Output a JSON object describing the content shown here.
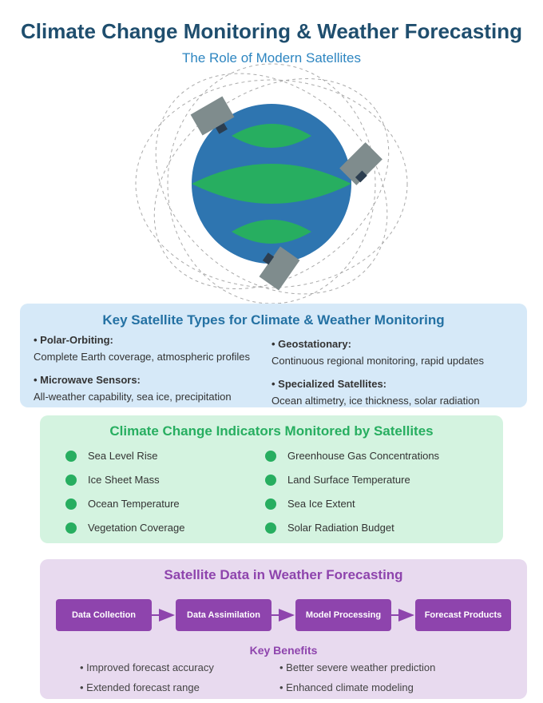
{
  "header": {
    "title": "Climate Change Monitoring & Weather Forecasting",
    "subtitle": "The Role of Modern Satellites"
  },
  "colors": {
    "earth": "#2e75b0",
    "land": "#27ae60",
    "satellite_body": "#7f8c8d",
    "satellite_dark": "#2c3e50",
    "types_panel": "#d6e9f8",
    "indicators_panel": "#d4f3e0",
    "forecast_panel": "#e8daef",
    "accent_purple": "#8e44ad"
  },
  "satellite_types": {
    "heading": "Key Satellite Types for Climate & Weather Monitoring",
    "items": [
      {
        "name": "• Polar-Orbiting:",
        "desc": "Complete Earth coverage, atmospheric profiles"
      },
      {
        "name": "• Geostationary:",
        "desc": "Continuous regional monitoring, rapid updates"
      },
      {
        "name": "• Microwave Sensors:",
        "desc": "All-weather capability, sea ice, precipitation"
      },
      {
        "name": "• Specialized Satellites:",
        "desc": "Ocean altimetry, ice thickness, solar radiation"
      }
    ]
  },
  "indicators": {
    "heading": "Climate Change Indicators Monitored by Satellites",
    "items": [
      "Sea Level Rise",
      "Greenhouse Gas Concentrations",
      "Ice Sheet Mass",
      "Land Surface Temperature",
      "Ocean Temperature",
      "Sea Ice Extent",
      "Vegetation Coverage",
      "Solar Radiation Budget"
    ]
  },
  "forecasting": {
    "heading": "Satellite Data in Weather Forecasting",
    "steps": [
      "Data Collection",
      "Data Assimilation",
      "Model Processing",
      "Forecast Products"
    ],
    "benefits_heading": "Key Benefits",
    "benefits": [
      "• Improved forecast accuracy",
      "• Better severe weather prediction",
      "• Extended forecast range",
      "• Enhanced climate modeling"
    ]
  }
}
